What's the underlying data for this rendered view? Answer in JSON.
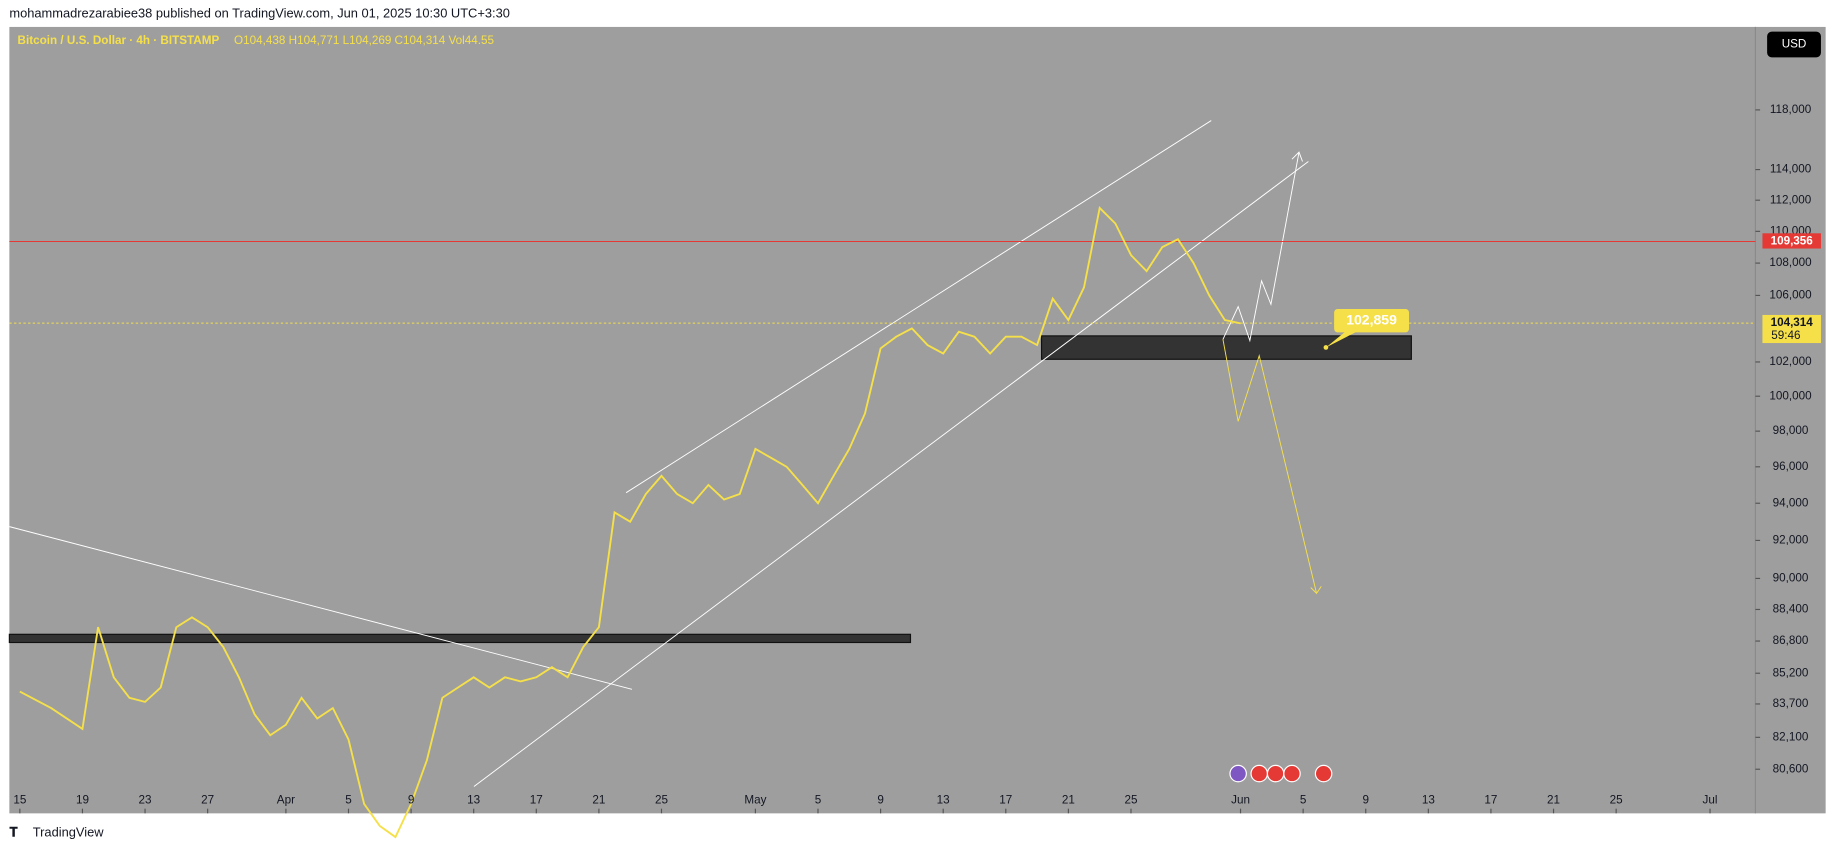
{
  "header": {
    "publisher": "mohammadrezarabiee38 published on TradingView.com, Jun 01, 2025 10:30 UTC+3:30"
  },
  "legend": {
    "symbol": "Bitcoin / U.S. Dollar · 4h · BITSTAMP",
    "ohlc": "O104,438  H104,771  L104,269  C104,314  Vol44.55"
  },
  "currency_button": "USD",
  "footer": {
    "brand": "TradingView"
  },
  "chart_data": {
    "type": "line",
    "log_scale": true,
    "color": "#f5e04a",
    "series": [
      {
        "name": "Bitcoin / U.S. Dollar",
        "color": "#f5e04a",
        "x": [
          0,
          2,
          4,
          5,
          6,
          7,
          8,
          9,
          10,
          11,
          12,
          13,
          14,
          15,
          16,
          17,
          18,
          19,
          20,
          21,
          22,
          23,
          24,
          25,
          26,
          27,
          28,
          29,
          30,
          31,
          32,
          33,
          34,
          35,
          36,
          37,
          38,
          39,
          40,
          41,
          42,
          43,
          44,
          45,
          46,
          47,
          48,
          49,
          50,
          51,
          52,
          53,
          54,
          55,
          56,
          57,
          58,
          59,
          60,
          61,
          62,
          63,
          64,
          65,
          66,
          67,
          68,
          69,
          70,
          71,
          72,
          73,
          74,
          75,
          76,
          77,
          78
        ],
        "values": [
          84300,
          83500,
          82500,
          87500,
          85000,
          84000,
          83800,
          84500,
          87500,
          88000,
          87500,
          86500,
          85000,
          83200,
          82200,
          82700,
          84000,
          83000,
          83500,
          82000,
          79000,
          78000,
          77500,
          79000,
          81000,
          84000,
          84500,
          85000,
          84500,
          85000,
          84800,
          85000,
          85500,
          85000,
          86500,
          87500,
          93500,
          93000,
          94500,
          95500,
          94500,
          94000,
          95000,
          94200,
          94500,
          97000,
          96500,
          96000,
          95000,
          94000,
          95500,
          97000,
          99000,
          102800,
          103500,
          104000,
          103000,
          102500,
          103800,
          103500,
          102500,
          103500,
          103500,
          103000,
          105800,
          104500,
          106500,
          111500,
          110500,
          108500,
          107500,
          109000,
          109500,
          108000,
          106000,
          104500,
          104300
        ]
      }
    ],
    "ylim": [
      78570,
      123800
    ],
    "yticks": [
      {
        "value": 80600,
        "label": "80,600"
      },
      {
        "value": 82100,
        "label": "82,100"
      },
      {
        "value": 83700,
        "label": "83,700"
      },
      {
        "value": 85200,
        "label": "85,200"
      },
      {
        "value": 86800,
        "label": "86,800"
      },
      {
        "value": 88400,
        "label": "88,400"
      },
      {
        "value": 90000,
        "label": "90,000"
      },
      {
        "value": 92000,
        "label": "92,000"
      },
      {
        "value": 94000,
        "label": "94,000"
      },
      {
        "value": 96000,
        "label": "96,000"
      },
      {
        "value": 98000,
        "label": "98,000"
      },
      {
        "value": 100000,
        "label": "100,000"
      },
      {
        "value": 102000,
        "label": "102,000"
      },
      {
        "value": 106000,
        "label": "106,000"
      },
      {
        "value": 108000,
        "label": "108,000"
      },
      {
        "value": 110000,
        "label": "110,000"
      },
      {
        "value": 112000,
        "label": "112,000"
      },
      {
        "value": 114000,
        "label": "114,000"
      },
      {
        "value": 118000,
        "label": "118,000"
      }
    ],
    "xlim": [
      -0.67,
      110.9
    ],
    "xticks": [
      {
        "value": 0,
        "label": "15"
      },
      {
        "value": 4,
        "label": "19"
      },
      {
        "value": 8,
        "label": "23"
      },
      {
        "value": 12,
        "label": "27"
      },
      {
        "value": 17,
        "label": "Apr"
      },
      {
        "value": 21,
        "label": "5"
      },
      {
        "value": 25,
        "label": "9"
      },
      {
        "value": 29,
        "label": "13"
      },
      {
        "value": 33,
        "label": "17"
      },
      {
        "value": 37,
        "label": "21"
      },
      {
        "value": 41,
        "label": "25"
      },
      {
        "value": 47,
        "label": "May"
      },
      {
        "value": 51,
        "label": "5"
      },
      {
        "value": 55,
        "label": "9"
      },
      {
        "value": 59,
        "label": "13"
      },
      {
        "value": 63,
        "label": "17"
      },
      {
        "value": 67,
        "label": "21"
      },
      {
        "value": 71,
        "label": "25"
      },
      {
        "value": 78,
        "label": "Jun"
      },
      {
        "value": 82,
        "label": "5"
      },
      {
        "value": 86,
        "label": "9"
      },
      {
        "value": 90,
        "label": "13"
      },
      {
        "value": 94,
        "label": "17"
      },
      {
        "value": 98,
        "label": "21"
      },
      {
        "value": 102,
        "label": "25"
      },
      {
        "value": 108,
        "label": "Jul"
      }
    ],
    "levels": [
      {
        "value": 109356,
        "label": "109,356",
        "color": "#e53935",
        "style": "solid"
      },
      {
        "value": 104314,
        "label": "104,314",
        "color": "#f5e04a",
        "style": "dotted",
        "countdown": "59:46"
      }
    ],
    "annotations": [
      {
        "value": 102859,
        "label": "102,859"
      }
    ]
  }
}
